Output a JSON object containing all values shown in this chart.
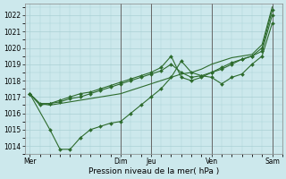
{
  "xlabel": "Pression niveau de la mer( hPa )",
  "bg_color": "#cce8ec",
  "grid_color": "#aad0d4",
  "line_color": "#2d6b2d",
  "ylim": [
    1013.5,
    1022.7
  ],
  "yticks": [
    1014,
    1015,
    1016,
    1017,
    1018,
    1019,
    1020,
    1021,
    1022
  ],
  "xtick_positions": [
    0,
    9,
    12,
    18,
    24
  ],
  "xtick_labels": [
    "Mer",
    "Dim",
    "Jeu",
    "Ven",
    "Sam"
  ],
  "vline_positions": [
    9,
    12,
    18,
    24
  ],
  "xlim": [
    -0.5,
    25.0
  ],
  "series": [
    {
      "x": [
        0,
        1,
        2,
        3,
        4,
        5,
        6,
        7,
        8,
        9,
        10,
        11,
        12,
        13,
        14,
        15,
        16,
        17,
        18,
        19,
        20,
        21,
        22,
        23,
        24
      ],
      "y": [
        1017.2,
        1016.6,
        1016.5,
        1016.6,
        1016.7,
        1016.8,
        1016.9,
        1017.0,
        1017.1,
        1017.2,
        1017.4,
        1017.6,
        1017.8,
        1018.0,
        1018.2,
        1018.4,
        1018.5,
        1018.7,
        1019.0,
        1019.2,
        1019.4,
        1019.5,
        1019.6,
        1020.2,
        1022.5
      ],
      "markers": false
    },
    {
      "x": [
        0,
        2,
        3,
        4,
        5,
        6,
        7,
        8,
        9,
        10,
        11,
        12,
        13,
        14,
        15,
        16,
        17,
        18,
        19,
        20,
        21,
        22,
        23,
        24
      ],
      "y": [
        1017.2,
        1015.0,
        1013.8,
        1013.8,
        1014.5,
        1015.0,
        1015.2,
        1015.4,
        1015.5,
        1016.0,
        1016.5,
        1017.0,
        1017.5,
        1018.2,
        1019.2,
        1018.5,
        1018.3,
        1018.2,
        1017.8,
        1018.2,
        1018.4,
        1019.0,
        1019.5,
        1021.5
      ],
      "markers": true
    },
    {
      "x": [
        0,
        1,
        2,
        3,
        4,
        5,
        6,
        7,
        8,
        9,
        10,
        11,
        12,
        13,
        14,
        15,
        16,
        17,
        18,
        19,
        20,
        21,
        22,
        23,
        24
      ],
      "y": [
        1017.2,
        1016.6,
        1016.6,
        1016.8,
        1017.0,
        1017.2,
        1017.3,
        1017.5,
        1017.7,
        1017.9,
        1018.1,
        1018.3,
        1018.5,
        1018.8,
        1019.5,
        1018.2,
        1018.0,
        1018.2,
        1018.5,
        1018.7,
        1019.0,
        1019.3,
        1019.5,
        1019.8,
        1022.0
      ],
      "markers": true
    },
    {
      "x": [
        0,
        1,
        2,
        3,
        4,
        5,
        6,
        7,
        8,
        9,
        10,
        11,
        12,
        13,
        14,
        15,
        16,
        17,
        18,
        19,
        20,
        21,
        22,
        23,
        24
      ],
      "y": [
        1017.2,
        1016.5,
        1016.6,
        1016.7,
        1016.9,
        1017.0,
        1017.2,
        1017.4,
        1017.6,
        1017.8,
        1018.0,
        1018.2,
        1018.4,
        1018.6,
        1019.0,
        1018.5,
        1018.2,
        1018.3,
        1018.5,
        1018.8,
        1019.1,
        1019.3,
        1019.5,
        1020.0,
        1022.3
      ],
      "markers": true
    }
  ]
}
